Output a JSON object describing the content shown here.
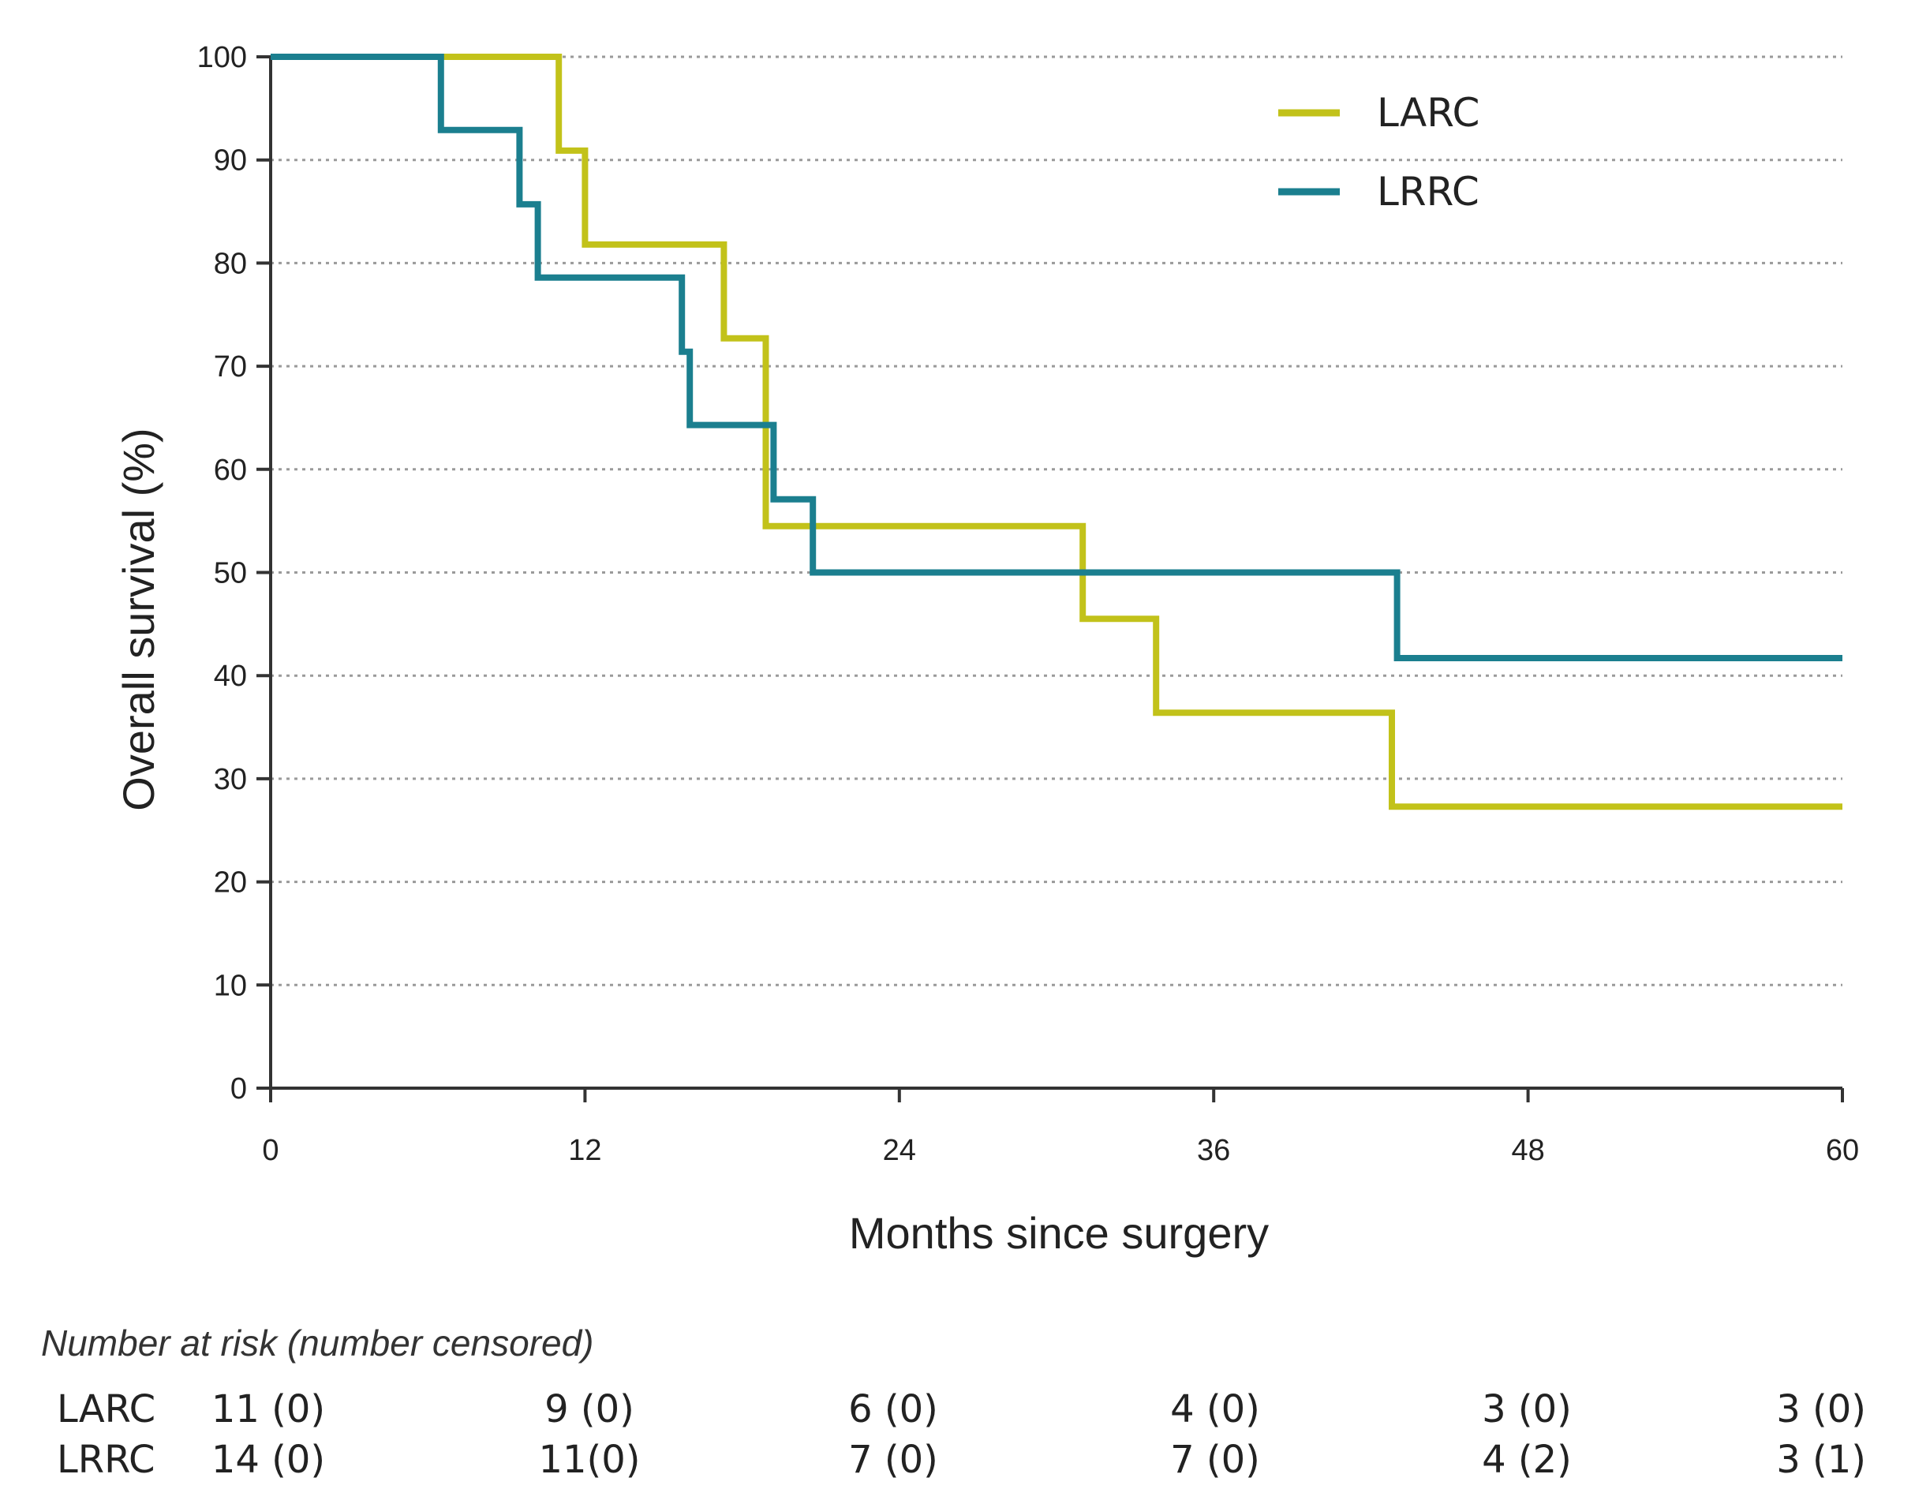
{
  "chart_data": {
    "type": "line",
    "step": true,
    "xlabel": "Months since surgery",
    "ylabel": "Overall survival  (%)",
    "xlim": [
      0,
      60
    ],
    "ylim": [
      0,
      100
    ],
    "xticks": [
      0,
      12,
      24,
      36,
      48,
      60
    ],
    "yticks": [
      0,
      10,
      20,
      30,
      40,
      50,
      60,
      70,
      80,
      90,
      100
    ],
    "grid": "horizontal dotted",
    "legend_position": "top-right",
    "series": [
      {
        "name": "LARC",
        "color": "#c2c21a",
        "x": [
          0,
          11,
          11,
          12,
          12,
          17.3,
          17.3,
          18.9,
          18.9,
          31,
          31,
          33.8,
          33.8,
          42.8,
          42.8,
          60
        ],
        "y": [
          100,
          100,
          90.9,
          90.9,
          81.8,
          81.8,
          72.7,
          72.7,
          54.5,
          54.5,
          45.5,
          45.5,
          36.4,
          36.4,
          27.3,
          27.3
        ]
      },
      {
        "name": "LRRC",
        "color": "#1b7f8f",
        "x": [
          0,
          6.5,
          6.5,
          9.5,
          9.5,
          10.2,
          10.2,
          15.7,
          15.7,
          16,
          16,
          19.2,
          19.2,
          20.7,
          20.7,
          43,
          43,
          60
        ],
        "y": [
          100,
          100,
          92.9,
          92.9,
          85.7,
          85.7,
          78.6,
          78.6,
          71.4,
          71.4,
          64.3,
          64.3,
          57.1,
          57.1,
          50,
          50,
          41.7,
          41.7
        ]
      }
    ],
    "risk_table": {
      "title": "Number at risk (number censored)",
      "rows": [
        {
          "label": "LARC",
          "values": [
            "11 (0)",
            "9 (0)",
            "6 (0)",
            "4 (0)",
            "3 (0)",
            "3 (0)"
          ]
        },
        {
          "label": "LRRC",
          "values": [
            "14 (0)",
            "11(0)",
            "7 (0)",
            "7 (0)",
            "4 (2)",
            "3 (1)"
          ]
        }
      ]
    }
  }
}
